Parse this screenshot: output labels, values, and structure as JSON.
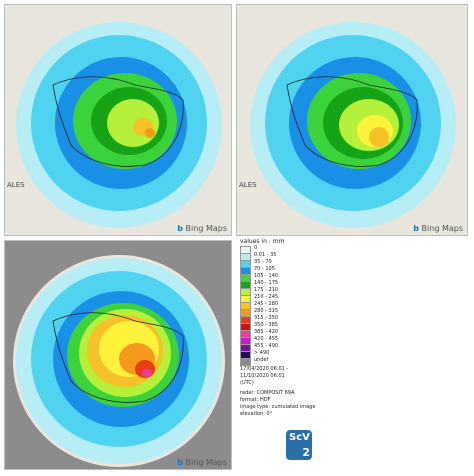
{
  "maps": {
    "panel1": {
      "edge_label": "ALES",
      "attribution": "Bing Maps"
    },
    "panel2": {
      "edge_label": "ALES",
      "attribution": "Bing Maps"
    },
    "panel3": {
      "attribution": "Bing Maps"
    }
  },
  "legend": {
    "title": "values in : mm",
    "classes": [
      {
        "label": "0",
        "color": "#f2f2f2"
      },
      {
        "label": "0.01 - 35",
        "color": "#b7eef5"
      },
      {
        "label": "35 - 70",
        "color": "#4fd3f0"
      },
      {
        "label": "70 - 105",
        "color": "#1a8fe6"
      },
      {
        "label": "105 - 140",
        "color": "#3cd23c"
      },
      {
        "label": "140 - 175",
        "color": "#16a316"
      },
      {
        "label": "175 - 210",
        "color": "#b5f03a"
      },
      {
        "label": "210 - 245",
        "color": "#fff23a"
      },
      {
        "label": "245 - 280",
        "color": "#f7c229"
      },
      {
        "label": "280 - 315",
        "color": "#f59a1c"
      },
      {
        "label": "315 - 350",
        "color": "#ec3b16"
      },
      {
        "label": "350 - 385",
        "color": "#c81414"
      },
      {
        "label": "385 - 420",
        "color": "#e83c9e"
      },
      {
        "label": "420 - 455",
        "color": "#d215d2"
      },
      {
        "label": "455 - 490",
        "color": "#7b0fa0"
      },
      {
        "label": "> 490",
        "color": "#2a0a60"
      },
      {
        "label": "undef",
        "color": "#8c8c8c"
      }
    ]
  },
  "metadata": {
    "period_line1": "17/04/2020 06:01 -",
    "period_line2": "11/10/2020 06:01",
    "timezone": "(UTC)",
    "radar": "radar:  COMPOSIT 69A",
    "format": "format:  HDF",
    "image_type": "image type:  cumulated image",
    "elevation": "elevation:  0°"
  },
  "logo": {
    "text": "ScV",
    "number": "2"
  }
}
